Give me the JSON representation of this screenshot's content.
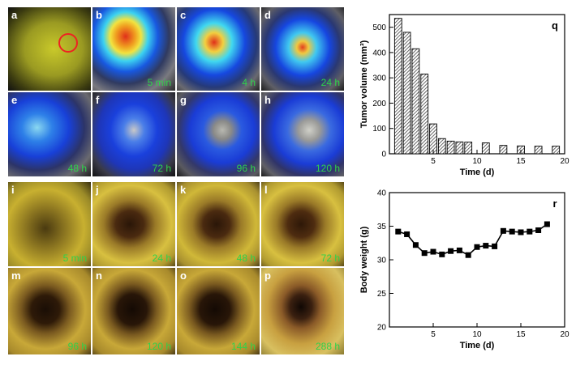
{
  "fluorescence_panels": [
    {
      "label": "a",
      "time": ""
    },
    {
      "label": "b",
      "time": "5 min"
    },
    {
      "label": "c",
      "time": "4 h"
    },
    {
      "label": "d",
      "time": "24 h"
    },
    {
      "label": "e",
      "time": "48 h"
    },
    {
      "label": "f",
      "time": "72 h"
    },
    {
      "label": "g",
      "time": "96 h"
    },
    {
      "label": "h",
      "time": "120 h"
    }
  ],
  "photo_panels": [
    {
      "label": "i",
      "time": "5 min"
    },
    {
      "label": "j",
      "time": "24 h"
    },
    {
      "label": "k",
      "time": "48 h"
    },
    {
      "label": "l",
      "time": "72 h"
    },
    {
      "label": "m",
      "time": "96 h"
    },
    {
      "label": "n",
      "time": "120 h"
    },
    {
      "label": "o",
      "time": "144 h"
    },
    {
      "label": "p",
      "time": "288 h"
    }
  ],
  "chart_data": [
    {
      "type": "bar",
      "panel_label": "q",
      "xlabel": "Time (d)",
      "ylabel": "Tumor volume (mm³)",
      "xlim": [
        0,
        20
      ],
      "ylim": [
        0,
        550
      ],
      "xticks": [
        5,
        10,
        15,
        20
      ],
      "yticks": [
        0,
        100,
        200,
        300,
        400,
        500
      ],
      "x": [
        1,
        2,
        3,
        4,
        5,
        6,
        7,
        8,
        9,
        11,
        13,
        15,
        17,
        19
      ],
      "values": [
        535,
        480,
        415,
        315,
        118,
        60,
        50,
        47,
        46,
        43,
        33,
        31,
        30,
        30
      ],
      "bar_color": "#bdbdbd",
      "hatch": "diagonal"
    },
    {
      "type": "line",
      "panel_label": "r",
      "xlabel": "Time (d)",
      "ylabel": "Body weight (g)",
      "xlim": [
        0,
        20
      ],
      "ylim": [
        20,
        40
      ],
      "xticks": [
        5,
        10,
        15,
        20
      ],
      "yticks": [
        20,
        25,
        30,
        35,
        40
      ],
      "x": [
        1,
        2,
        3,
        4,
        5,
        6,
        7,
        8,
        9,
        10,
        11,
        12,
        13,
        14,
        15,
        16,
        17,
        18
      ],
      "values": [
        34.2,
        33.8,
        32.2,
        31.0,
        31.2,
        30.8,
        31.3,
        31.4,
        30.7,
        31.9,
        32.1,
        32.0,
        34.3,
        34.2,
        34.1,
        34.2,
        34.4,
        35.3
      ],
      "marker": "square",
      "color": "#000000"
    }
  ]
}
